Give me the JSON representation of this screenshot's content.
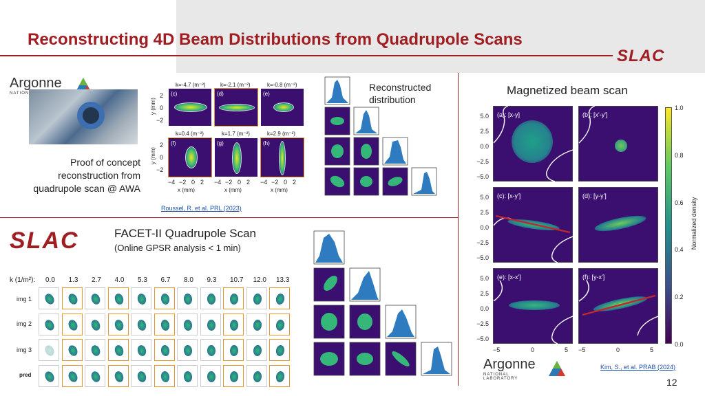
{
  "slide": {
    "title": "Reconstructing 4D Beam Distributions from Quadrupole Scans",
    "page_number": "12",
    "brand_color": "#a01e22"
  },
  "logos": {
    "slac_top": "SLAC",
    "slac_facet": "SLAC",
    "argonne_top": "Argonne",
    "argonne_top_sub": "NATIONAL LABORATORY",
    "argonne_bottom": "Argonne",
    "argonne_bottom_sub": "NATIONAL LABORATORY"
  },
  "awa": {
    "caption_lines": [
      "Proof of concept",
      "reconstruction from",
      "quadrupole scan @ AWA"
    ],
    "citation": "Roussel, R. et al. PRL (2023)",
    "panels_row1": [
      {
        "k": "k=-4.7 (m⁻²)",
        "tag": "(c)"
      },
      {
        "k": "k=-2.1 (m⁻²)",
        "tag": "(d)"
      },
      {
        "k": "k=-0.8 (m⁻²)",
        "tag": "(e)"
      }
    ],
    "panels_row2": [
      {
        "k": "k=0.4 (m⁻²)",
        "tag": "(f)"
      },
      {
        "k": "k=1.7 (m⁻²)",
        "tag": "(g)"
      },
      {
        "k": "k=2.9 (m⁻²)",
        "tag": "(h)"
      }
    ],
    "ylabel": "y (mm)",
    "xlabel": "x (mm)",
    "yticks": [
      "2",
      "0",
      "−2"
    ],
    "xticks": [
      "−4",
      "−2",
      "0",
      "2"
    ]
  },
  "reconstructed": {
    "title_lines": [
      "Reconstructed",
      "distribution"
    ]
  },
  "facet": {
    "title": "FACET-II Quadrupole Scan",
    "subtitle": "(Online GPSR analysis < 1 min)",
    "k_label": "k (1/m²):",
    "k_values": [
      "0.0",
      "1.3",
      "2.7",
      "4.0",
      "5.3",
      "6.7",
      "8.0",
      "9.3",
      "10.7",
      "12.0",
      "13.3"
    ],
    "rows": [
      "img 1",
      "img 2",
      "img 3",
      "pred"
    ]
  },
  "magnetized": {
    "title": "Magnetized beam scan",
    "panels": [
      "(a): [x-y]",
      "(b): [x'-y']",
      "(c): [x-y']",
      "(d): [y-y']",
      "(e): [x-x']",
      "(f): [y-x']"
    ],
    "yticks": [
      "5.0",
      "2.5",
      "0.0",
      "−2.5",
      "−5.0"
    ],
    "xticks": [
      "−5",
      "0",
      "5"
    ],
    "colorbar_label": "Normalized density",
    "colorbar_ticks": [
      "1.0",
      "0.8",
      "0.6",
      "0.4",
      "0.2",
      "0.0"
    ],
    "citation": "Kim, S., et al. PRAB (2024)"
  }
}
